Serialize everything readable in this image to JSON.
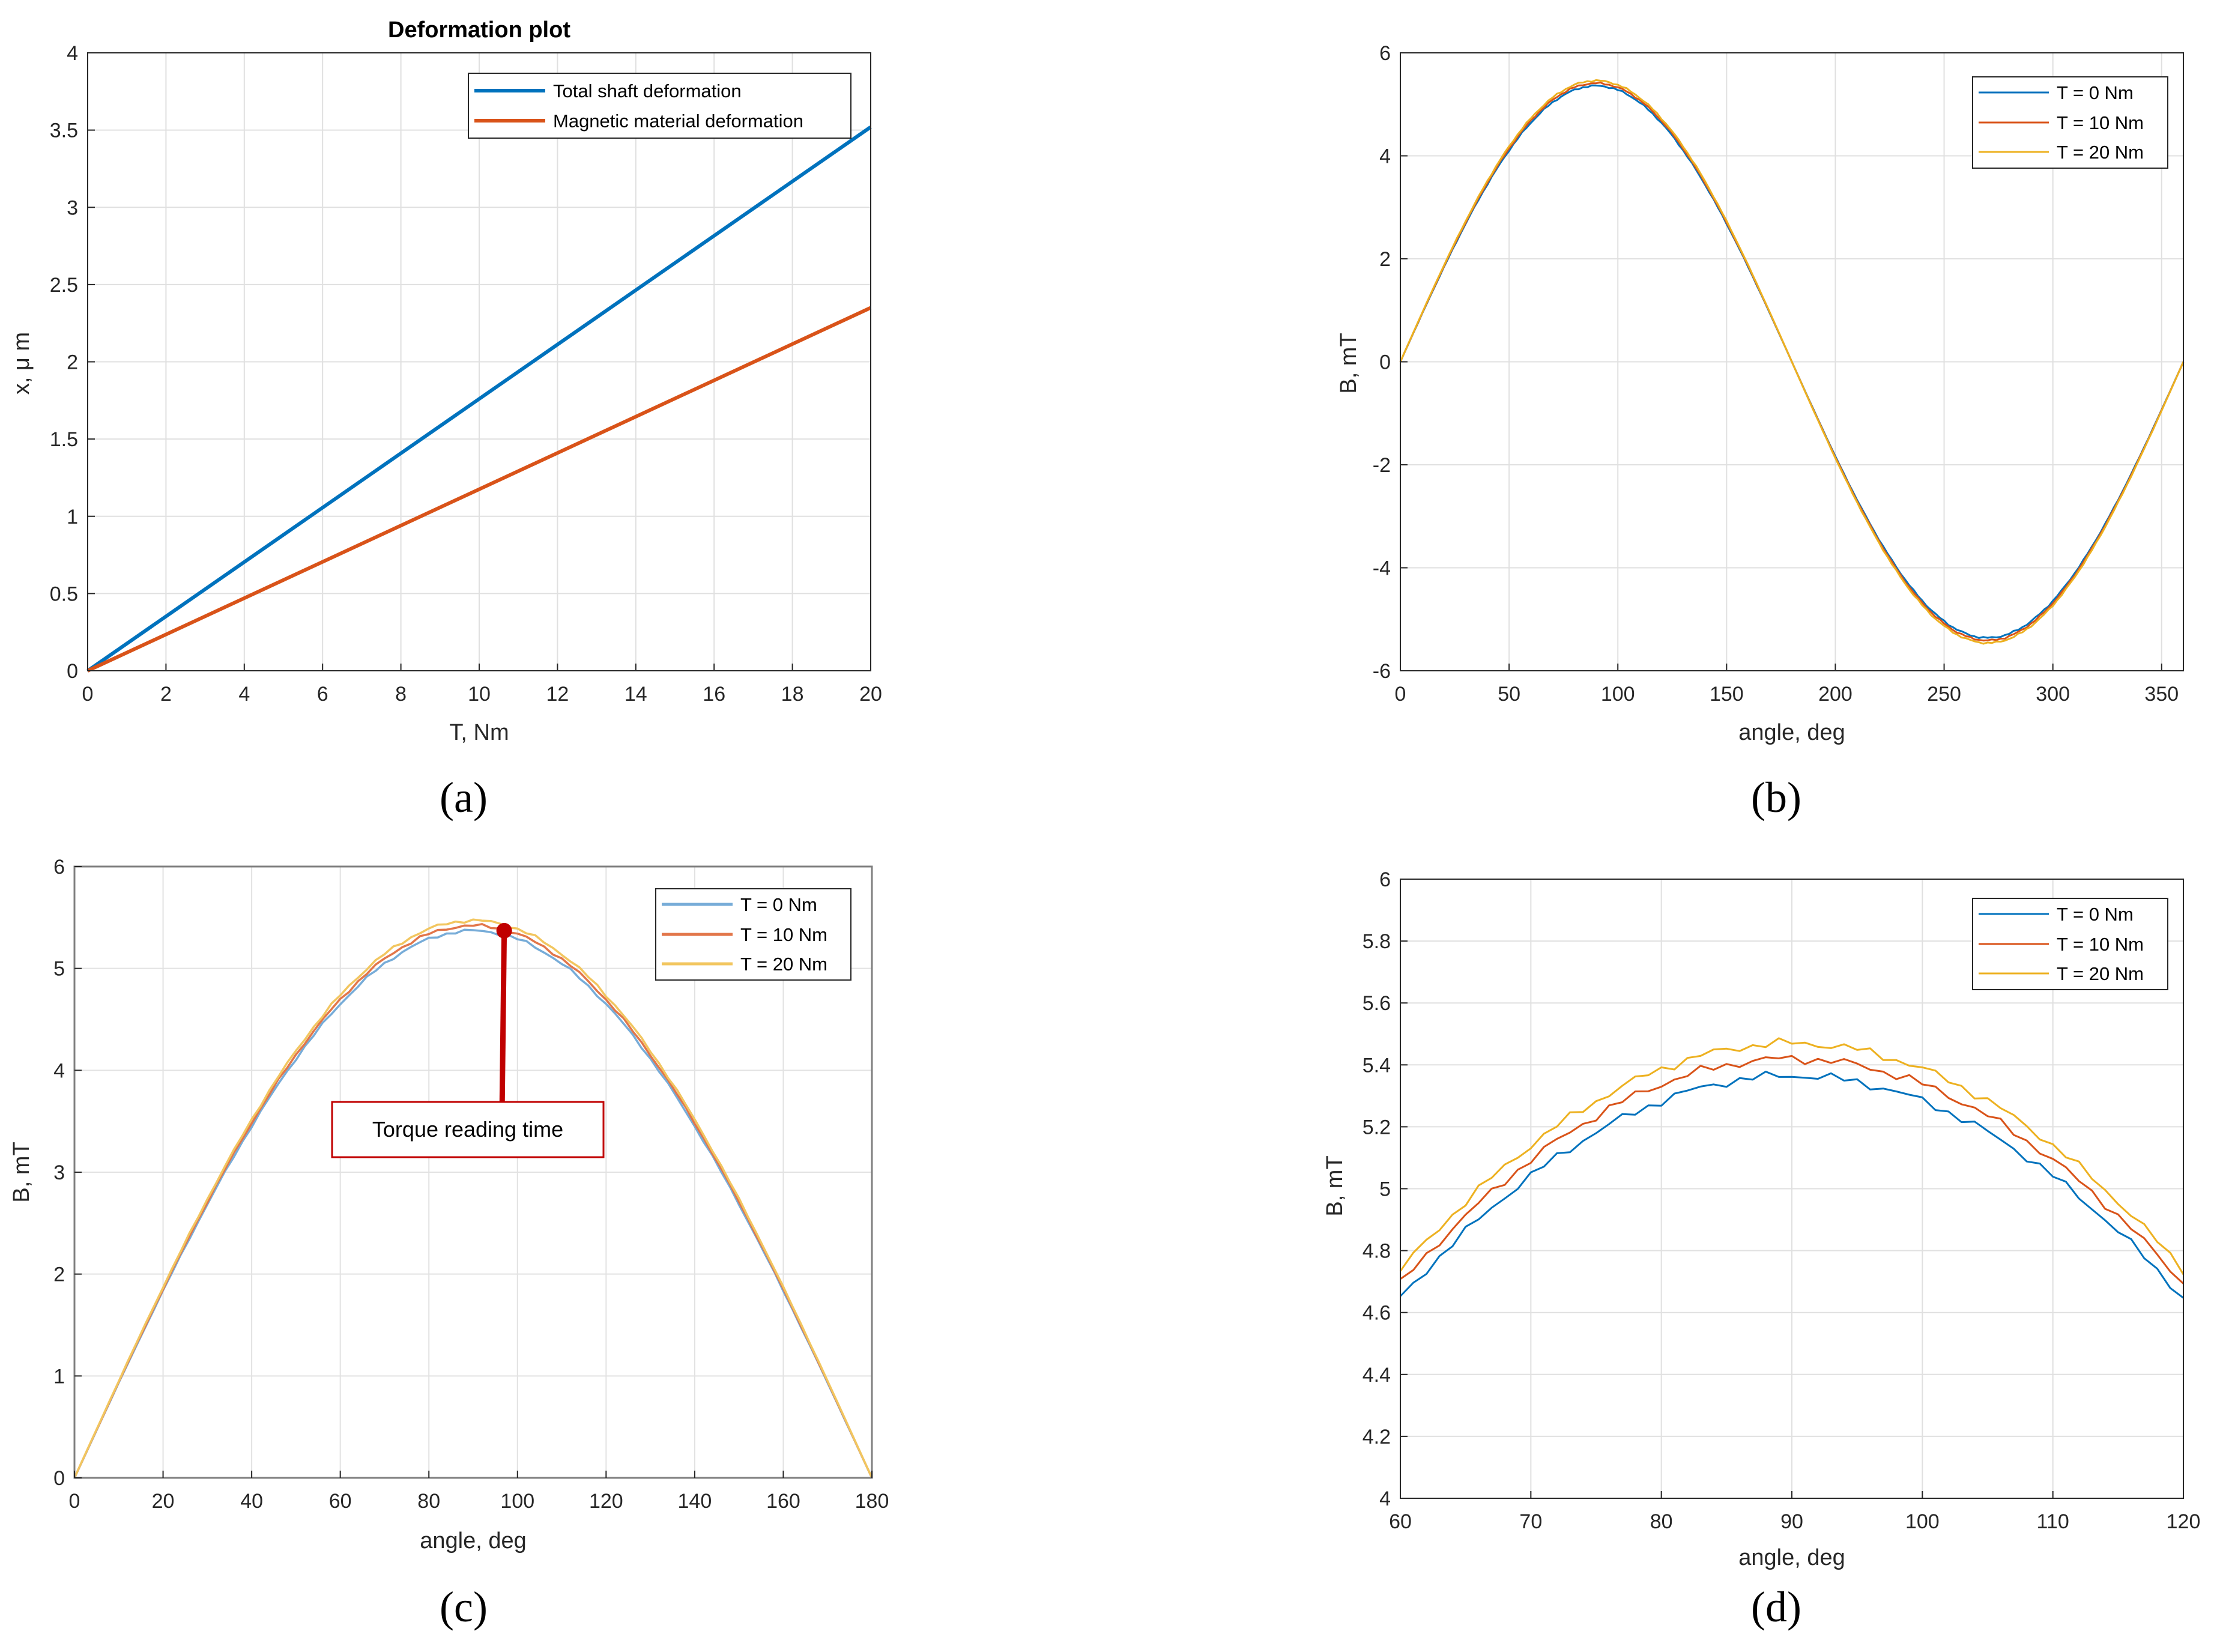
{
  "chart_data": [
    {
      "id": "a",
      "type": "line",
      "panel_label": "(a)",
      "title": "Deformation plot",
      "xlabel": "T, Nm",
      "ylabel": "x, μ m",
      "xlim": [
        0,
        20
      ],
      "ylim": [
        0,
        4
      ],
      "xticks": [
        "0",
        "2",
        "4",
        "6",
        "8",
        "10",
        "12",
        "14",
        "16",
        "18",
        "20"
      ],
      "yticks": [
        "0",
        "0.5",
        "1",
        "1.5",
        "2",
        "2.5",
        "3",
        "3.5",
        "4"
      ],
      "grid": true,
      "legend_position": "top-right",
      "series": [
        {
          "name": "Total shaft deformation",
          "color": "#0072BD",
          "x": [
            0,
            20
          ],
          "y": [
            0,
            3.52
          ]
        },
        {
          "name": "Magnetic material deformation",
          "color": "#D95319",
          "x": [
            0,
            20
          ],
          "y": [
            0,
            2.35
          ]
        }
      ]
    },
    {
      "id": "b",
      "type": "line",
      "panel_label": "(b)",
      "title": "",
      "xlabel": "angle, deg",
      "ylabel": "B, mT",
      "xlim": [
        0,
        360
      ],
      "ylim": [
        -6,
        6
      ],
      "xticks": [
        "0",
        "50",
        "100",
        "150",
        "200",
        "250",
        "300",
        "350"
      ],
      "yticks": [
        "-6",
        "-4",
        "-2",
        "0",
        "2",
        "4",
        "6"
      ],
      "grid": true,
      "legend_position": "top-right",
      "series": [
        {
          "name": "T = 0 Nm",
          "color": "#0072BD",
          "amplitude": 5.36
        },
        {
          "name": "T = 10 Nm",
          "color": "#D95319",
          "amplitude": 5.41
        },
        {
          "name": "T = 20 Nm",
          "color": "#EDB120",
          "amplitude": 5.46
        }
      ]
    },
    {
      "id": "c",
      "type": "line",
      "panel_label": "(c)",
      "title": "",
      "xlabel": "angle, deg",
      "ylabel": "B, mT",
      "xlim": [
        0,
        180
      ],
      "ylim": [
        0,
        6
      ],
      "xticks": [
        "0",
        "20",
        "40",
        "60",
        "80",
        "100",
        "120",
        "140",
        "160",
        "180"
      ],
      "yticks": [
        "0",
        "1",
        "2",
        "3",
        "4",
        "5",
        "6"
      ],
      "grid": true,
      "legend_position": "top-right",
      "annotation": {
        "text": "Torque reading time",
        "x": 97,
        "y": 5.37,
        "box_y": 3.4
      },
      "series": [
        {
          "name": "T = 0 Nm",
          "color": "#77ACD8",
          "amplitude": 5.37
        },
        {
          "name": "T = 10 Nm",
          "color": "#E2764A",
          "amplitude": 5.42
        },
        {
          "name": "T = 20 Nm",
          "color": "#F2C65F",
          "amplitude": 5.47
        }
      ]
    },
    {
      "id": "d",
      "type": "line",
      "panel_label": "(d)",
      "title": "",
      "xlabel": "angle, deg",
      "ylabel": "B, mT",
      "xlim": [
        60,
        120
      ],
      "ylim": [
        4,
        6
      ],
      "xticks": [
        "60",
        "70",
        "80",
        "90",
        "100",
        "110",
        "120"
      ],
      "yticks": [
        "4",
        "4.2",
        "4.4",
        "4.6",
        "4.8",
        "5",
        "5.2",
        "5.4",
        "5.6",
        "5.8",
        "6"
      ],
      "grid": true,
      "legend_position": "top-right",
      "series": [
        {
          "name": "T = 0 Nm",
          "color": "#0072BD",
          "amplitude": 5.365
        },
        {
          "name": "T = 10 Nm",
          "color": "#D95319",
          "amplitude": 5.42
        },
        {
          "name": "T = 20 Nm",
          "color": "#EDB120",
          "amplitude": 5.47
        }
      ]
    }
  ]
}
